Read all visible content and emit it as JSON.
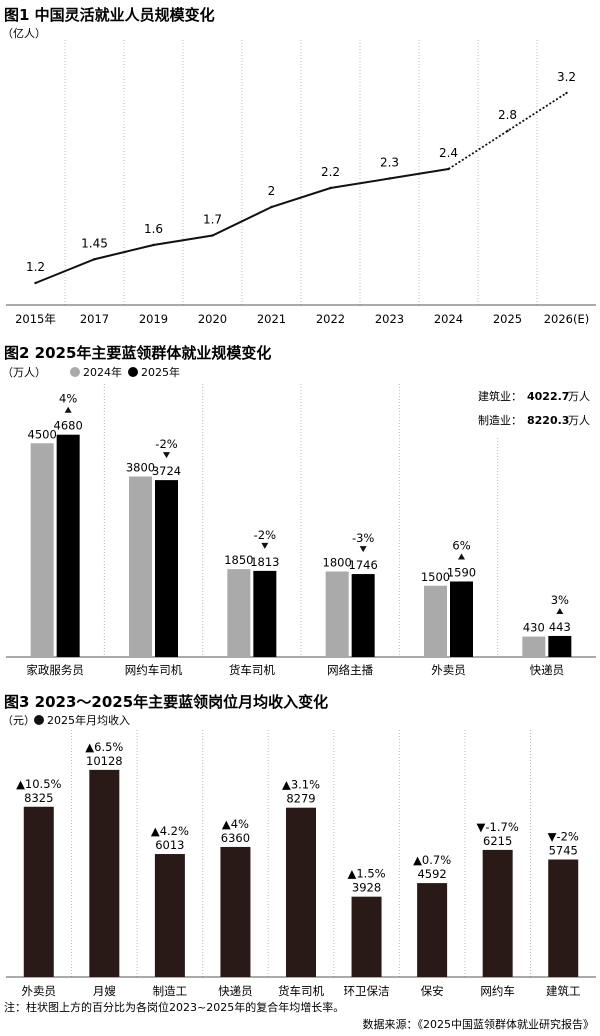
{
  "chart_data": [
    {
      "type": "line",
      "title": "图1 中国灵活就业人员规模变化",
      "unit": "（亿人）",
      "categories": [
        "2015年",
        "2017",
        "2019",
        "2020",
        "2021",
        "2022",
        "2023",
        "2024",
        "2025",
        "2026(E)"
      ],
      "values": [
        1.2,
        1.45,
        1.6,
        1.7,
        2,
        2.2,
        2.3,
        2.4,
        2.8,
        3.2
      ],
      "labels": [
        "1.2",
        "1.45",
        "1.6",
        "1.7",
        "2",
        "2.2",
        "2.3",
        "2.4",
        "2.8",
        "3.2"
      ],
      "projected_from_index": 8,
      "grid": "vertical dotted"
    },
    {
      "type": "bar",
      "title": "图2 2025年主要蓝领群体就业规模变化",
      "unit": "（万人）",
      "categories": [
        "家政服务员",
        "网约车司机",
        "货车司机",
        "网络主播",
        "外卖员",
        "快递员"
      ],
      "series": [
        {
          "name": "2024年",
          "color": "#aaaaaa",
          "values": [
            4500,
            3800,
            1850,
            1800,
            1500,
            430
          ]
        },
        {
          "name": "2025年",
          "color": "#000000",
          "values": [
            4680,
            3724,
            1813,
            1746,
            1590,
            443
          ]
        }
      ],
      "changes": [
        {
          "text": "4%",
          "dir": "up"
        },
        {
          "text": "-2%",
          "dir": "down"
        },
        {
          "text": "-2%",
          "dir": "down"
        },
        {
          "text": "-3%",
          "dir": "down"
        },
        {
          "text": "6%",
          "dir": "up"
        },
        {
          "text": "3%",
          "dir": "up"
        }
      ],
      "annotations": [
        {
          "label": "建筑业：",
          "value": "4022.7",
          "unit": "万人"
        },
        {
          "label": "制造业：",
          "value": "8220.3",
          "unit": "万人"
        }
      ]
    },
    {
      "type": "bar",
      "title": "图3 2023～2025年主要蓝领岗位月均收入变化",
      "unit": "（元）",
      "categories": [
        "外卖员",
        "月嫂",
        "制造工",
        "快递员",
        "货车司机",
        "环卫保洁",
        "保安",
        "网约车",
        "建筑工"
      ],
      "series": [
        {
          "name": "2025年月均收入",
          "color": "#2a1a17",
          "values": [
            8325,
            10128,
            6013,
            6360,
            8279,
            3928,
            4592,
            6215,
            5745
          ]
        }
      ],
      "changes": [
        {
          "text": "▲10.5%"
        },
        {
          "text": "▲6.5%"
        },
        {
          "text": "▲4.2%"
        },
        {
          "text": "▲4%"
        },
        {
          "text": "▲3.1%"
        },
        {
          "text": "▲1.5%"
        },
        {
          "text": "▲0.7%"
        },
        {
          "text": "▼-1.7%"
        },
        {
          "text": "▼-2%"
        }
      ]
    }
  ],
  "footer": {
    "note": "注：柱状图上方的百分比为各岗位2023~2025年的复合年均增长率。",
    "source": "数据来源：《2025中国蓝领群体就业研究报告》"
  }
}
